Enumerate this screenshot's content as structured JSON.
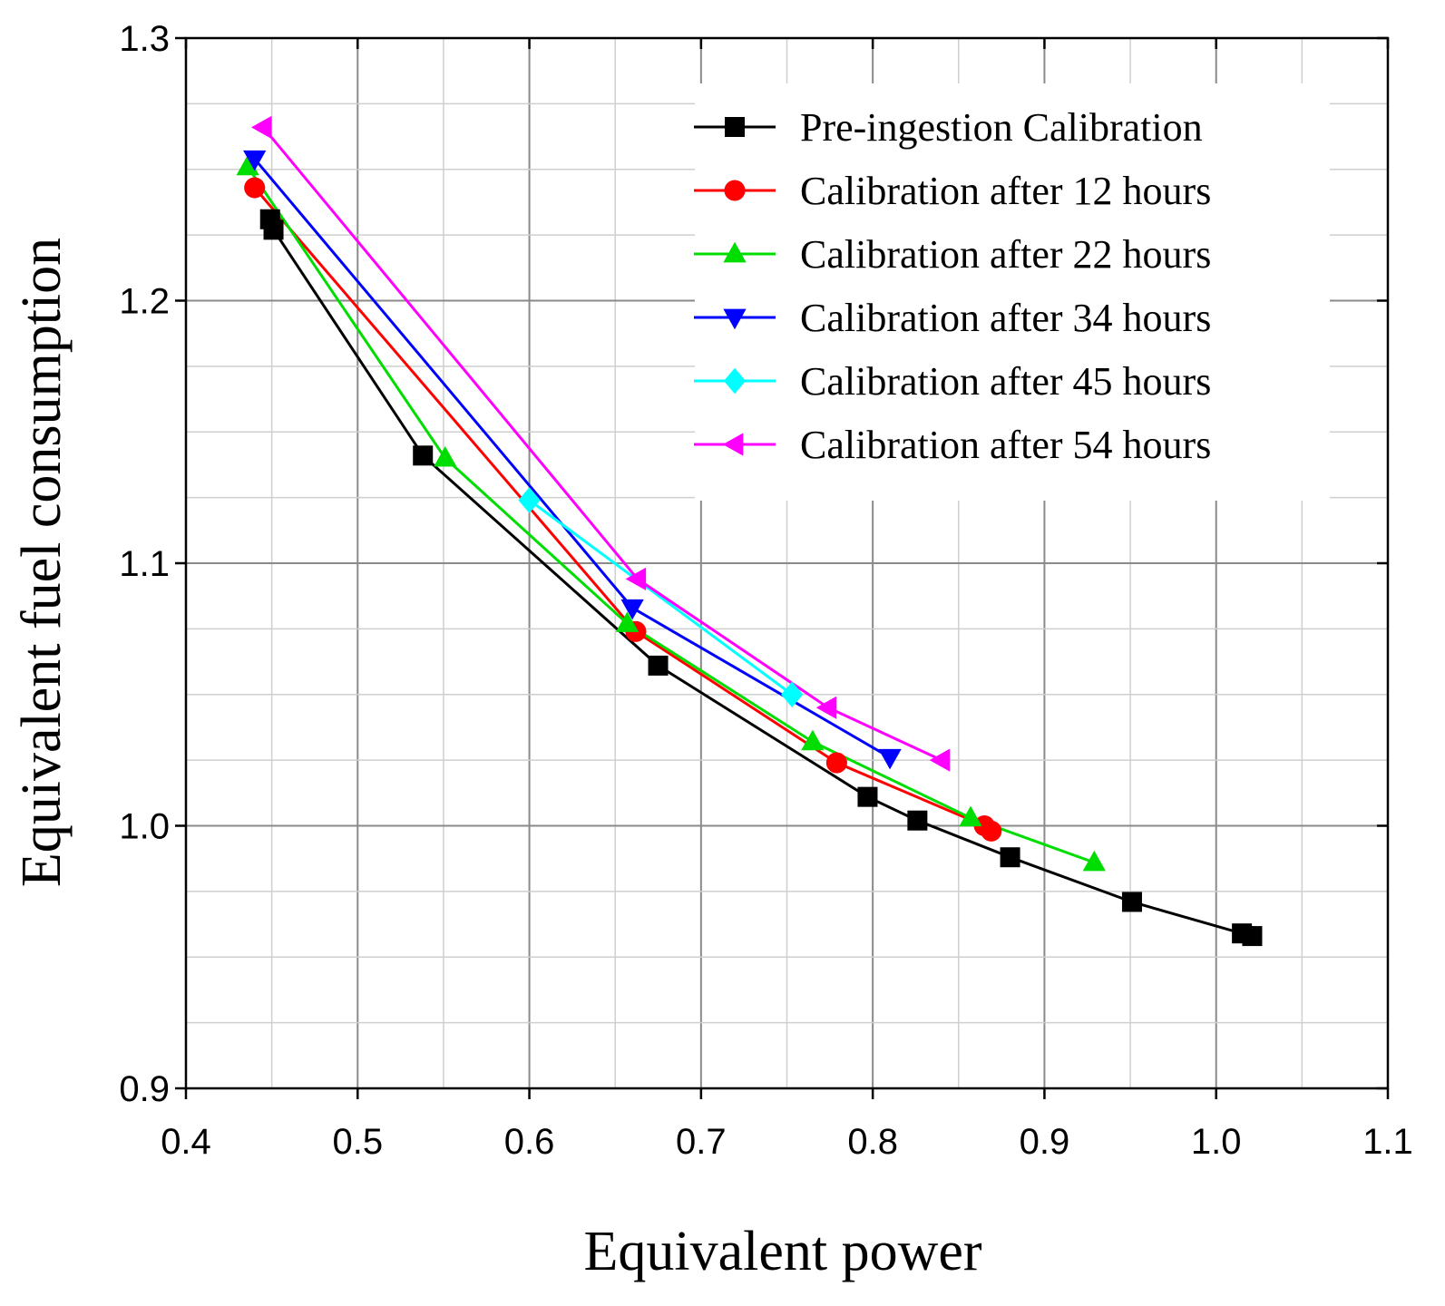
{
  "chart_data": {
    "type": "line",
    "title": "",
    "xlabel": "Equivalent power",
    "ylabel": "Equivalent fuel consumption",
    "xlim": [
      0.4,
      1.1
    ],
    "ylim": [
      0.9,
      1.3
    ],
    "xticks": [
      "0.4",
      "0.5",
      "0.6",
      "0.7",
      "0.8",
      "0.9",
      "1.0",
      "1.1"
    ],
    "yticks": [
      "0.9",
      "1.0",
      "1.1",
      "1.2",
      "1.3"
    ],
    "grid": true,
    "legend_position": "top-right",
    "series": [
      {
        "name": "Pre-ingestion Calibration",
        "color": "#000000",
        "marker": "square",
        "points": [
          [
            0.449,
            1.231
          ],
          [
            0.451,
            1.227
          ],
          [
            0.538,
            1.141
          ],
          [
            0.675,
            1.061
          ],
          [
            0.797,
            1.011
          ],
          [
            0.826,
            1.002
          ],
          [
            0.88,
            0.988
          ],
          [
            0.951,
            0.971
          ],
          [
            1.015,
            0.959
          ],
          [
            1.021,
            0.958
          ]
        ]
      },
      {
        "name": "Calibration after 12 hours",
        "color": "#ff0000",
        "marker": "circle",
        "points": [
          [
            0.44,
            1.243
          ],
          [
            0.662,
            1.074
          ],
          [
            0.779,
            1.024
          ],
          [
            0.865,
            1.0
          ],
          [
            0.869,
            0.998
          ]
        ]
      },
      {
        "name": "Calibration after 22 hours",
        "color": "#00dd00",
        "marker": "triangle-up",
        "points": [
          [
            0.436,
            1.251
          ],
          [
            0.551,
            1.14
          ],
          [
            0.657,
            1.077
          ],
          [
            0.765,
            1.032
          ],
          [
            0.857,
            1.003
          ],
          [
            0.929,
            0.986
          ]
        ]
      },
      {
        "name": "Calibration after 34 hours",
        "color": "#0000ff",
        "marker": "triangle-down",
        "points": [
          [
            0.44,
            1.254
          ],
          [
            0.66,
            1.083
          ],
          [
            0.81,
            1.026
          ]
        ]
      },
      {
        "name": "Calibration after 45 hours",
        "color": "#00ffff",
        "marker": "diamond",
        "points": [
          [
            0.6,
            1.124
          ],
          [
            0.753,
            1.05
          ]
        ]
      },
      {
        "name": "Calibration after 54 hours",
        "color": "#ff00ff",
        "marker": "triangle-left",
        "points": [
          [
            0.445,
            1.266
          ],
          [
            0.663,
            1.094
          ],
          [
            0.774,
            1.045
          ],
          [
            0.84,
            1.025
          ]
        ]
      }
    ]
  }
}
